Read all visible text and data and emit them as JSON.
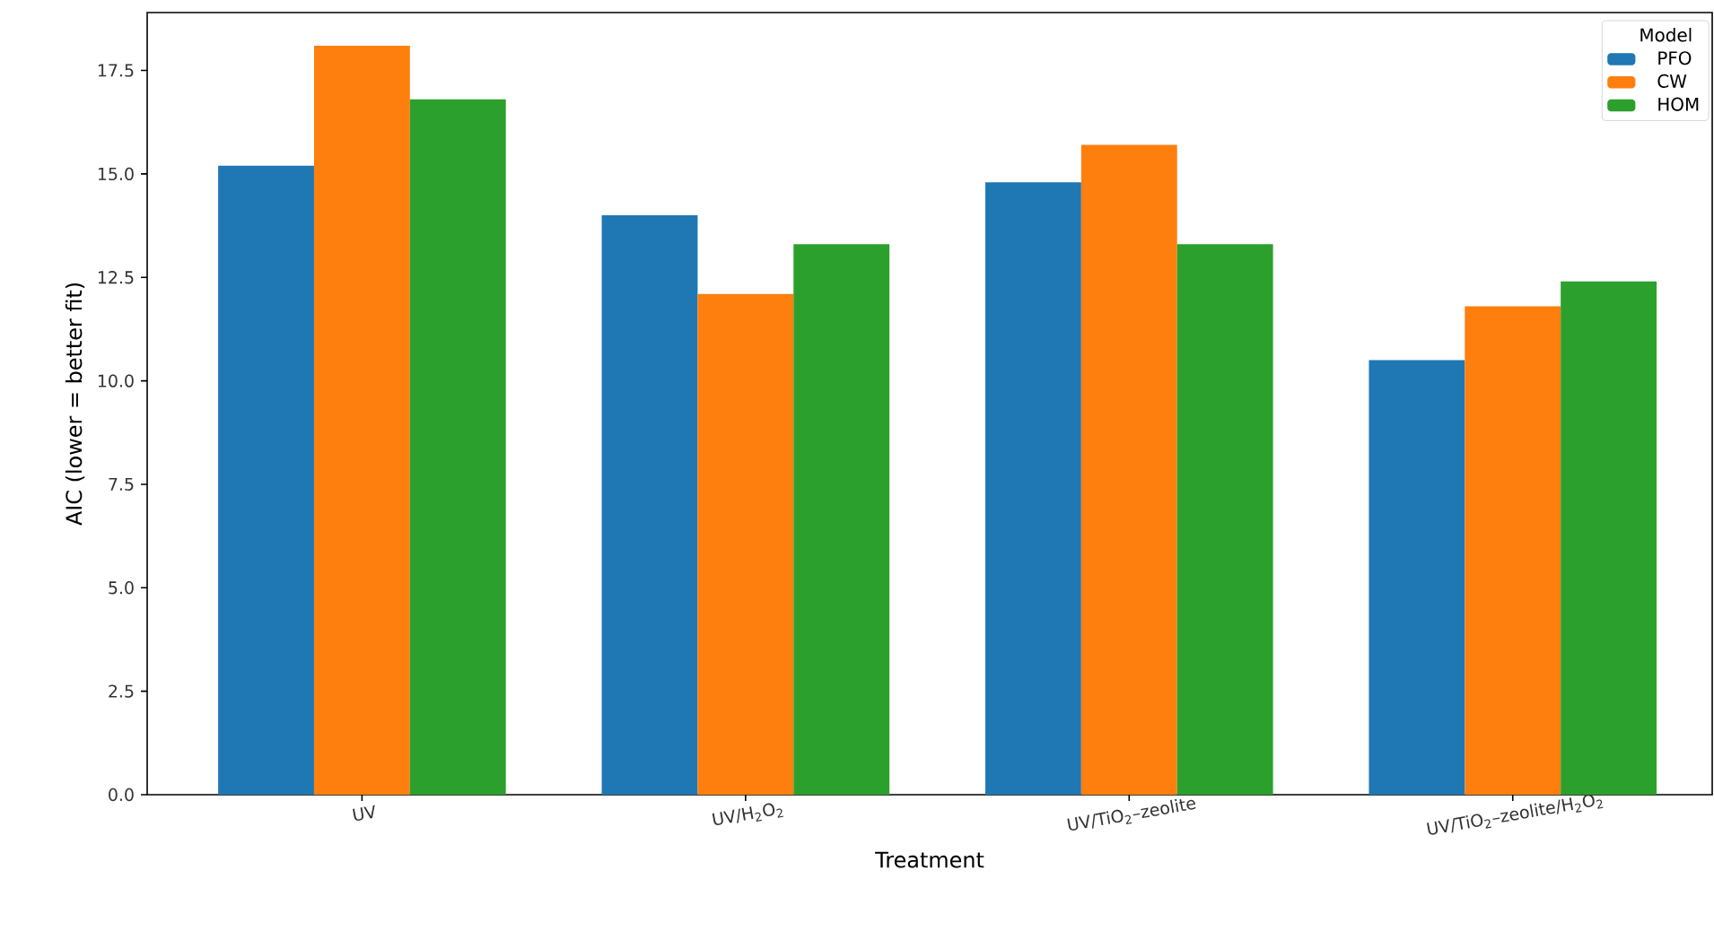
{
  "chart_data": {
    "type": "bar",
    "xlabel": "Treatment",
    "ylabel": "AIC (lower = better fit)",
    "legend_title": "Model",
    "legend": "top right",
    "categories": [
      "UV",
      "UV/H$_{2}$O$_{2}$",
      "UV/TiO$_{2}$–zeolite",
      "UV/TiO$_{2}$–zeolite/H$_{2}$O$_{2}$"
    ],
    "series": [
      {
        "name": "PFO",
        "color": "#1f77b4",
        "values": [
          15.2,
          14.0,
          14.8,
          10.5
        ]
      },
      {
        "name": "CW",
        "color": "#ff7f0e",
        "values": [
          18.1,
          12.1,
          15.7,
          11.8
        ]
      },
      {
        "name": "HOM",
        "color": "#2ca02c",
        "values": [
          16.8,
          13.3,
          13.3,
          12.4
        ]
      }
    ],
    "ylim": [
      0,
      18.9
    ],
    "yticks": [
      {
        "value": 0,
        "label": "0.0"
      },
      {
        "value": 2.5,
        "label": "2.5"
      },
      {
        "value": 5,
        "label": "5.0"
      },
      {
        "value": 7.5,
        "label": "7.5"
      },
      {
        "value": 10,
        "label": "10.0"
      },
      {
        "value": 12.5,
        "label": "12.5"
      },
      {
        "value": 15,
        "label": "15.0"
      },
      {
        "value": 17.5,
        "label": "17.5"
      }
    ]
  }
}
